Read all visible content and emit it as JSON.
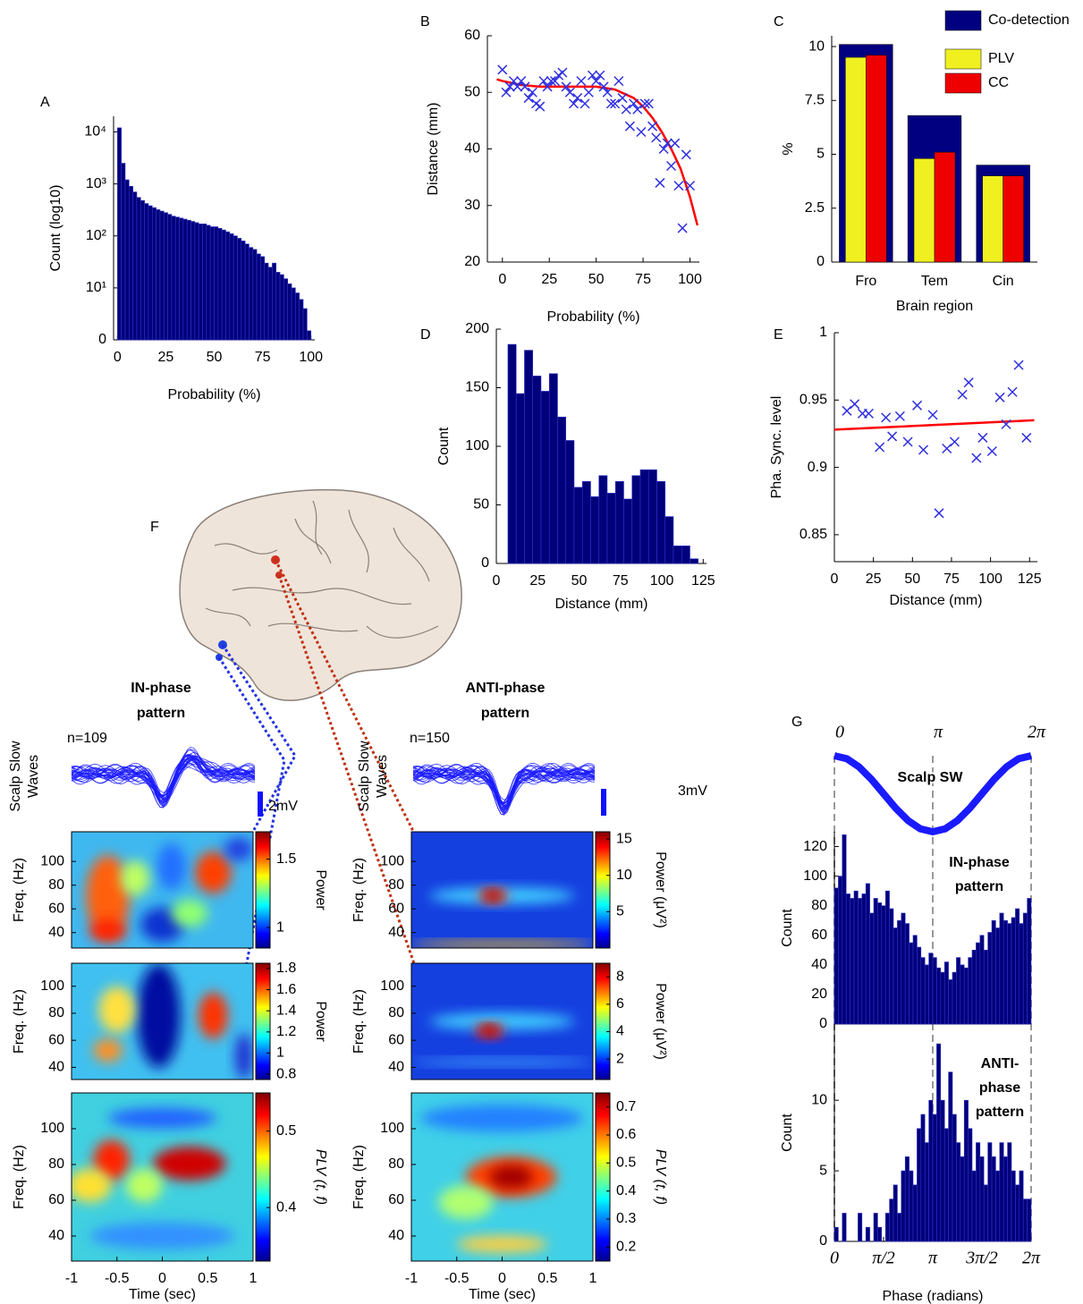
{
  "chart_data": [
    {
      "type": "histogram",
      "panel": "A",
      "log": true,
      "xlabel": "Probability (%)",
      "ylabel": "Count (log10)",
      "color": "#00007a",
      "bins": [
        0,
        2,
        4,
        6,
        8,
        10,
        12,
        14,
        16,
        18,
        20,
        22,
        24,
        26,
        28,
        30,
        32,
        34,
        36,
        38,
        40,
        42,
        44,
        46,
        48,
        50,
        52,
        54,
        56,
        58,
        60,
        62,
        64,
        66,
        68,
        70,
        72,
        74,
        76,
        78,
        80,
        82,
        84,
        86,
        88,
        90,
        92,
        94,
        96,
        98,
        100
      ],
      "counts": [
        12000,
        2500,
        1200,
        900,
        700,
        550,
        480,
        420,
        380,
        350,
        320,
        300,
        280,
        260,
        240,
        230,
        220,
        210,
        200,
        190,
        180,
        170,
        170,
        160,
        150,
        150,
        140,
        130,
        120,
        110,
        100,
        90,
        80,
        70,
        60,
        55,
        45,
        40,
        30,
        25,
        30,
        20,
        18,
        15,
        12,
        10,
        8,
        6,
        4,
        1.5
      ],
      "xlim": [
        -2,
        102
      ],
      "xticks": [
        0,
        25,
        50,
        75,
        100
      ],
      "ylim": [
        1,
        20000
      ],
      "yticks": [
        {
          "value": 1,
          "label": "0"
        },
        {
          "value": 10,
          "label": "10¹"
        },
        {
          "value": 100,
          "label": "10²"
        },
        {
          "value": 1000,
          "label": "10³"
        },
        {
          "value": 10000,
          "label": "10⁴"
        }
      ]
    },
    {
      "type": "scatter",
      "panel": "B",
      "xlabel": "Probability (%)",
      "ylabel": "Distance (mm)",
      "color": "#3030e0",
      "fit_color": "#ff0000",
      "x": [
        0,
        2,
        4,
        6,
        8,
        10,
        12,
        14,
        16,
        18,
        20,
        22,
        24,
        26,
        28,
        30,
        32,
        34,
        36,
        38,
        40,
        42,
        44,
        46,
        48,
        50,
        52,
        54,
        56,
        58,
        60,
        62,
        64,
        66,
        68,
        70,
        72,
        74,
        76,
        78,
        80,
        82,
        84,
        86,
        88,
        90,
        92,
        94,
        96,
        98,
        100
      ],
      "values": [
        54,
        50,
        51,
        52,
        51,
        52,
        51,
        49,
        50,
        48,
        47.5,
        52,
        51,
        52,
        52,
        53,
        53.5,
        51,
        50,
        48,
        49,
        52,
        48,
        50,
        53,
        52,
        53,
        51,
        50,
        48,
        48,
        52,
        49,
        47,
        44,
        48,
        47,
        43,
        48,
        48,
        44,
        42,
        34,
        40,
        41,
        37,
        41,
        33.5,
        26,
        39,
        33.5
      ],
      "fit_x": [
        -3,
        0,
        10,
        20,
        30,
        40,
        50,
        60,
        70,
        75,
        80,
        85,
        90,
        95,
        100,
        104
      ],
      "fit_values": [
        52.3,
        52,
        51.3,
        51,
        51,
        51,
        51,
        50.5,
        49,
        47.5,
        45.5,
        43,
        40,
        36.5,
        31.5,
        26.5
      ],
      "xlim": [
        -8,
        105
      ],
      "xticks": [
        0,
        25,
        50,
        75,
        100
      ],
      "ylim": [
        20,
        60
      ],
      "yticks": [
        20,
        30,
        40,
        50,
        60
      ]
    },
    {
      "type": "bar",
      "panel": "C",
      "xlabel": "Brain region",
      "ylabel": "%",
      "categories": [
        "Fro",
        "Tem",
        "Cin"
      ],
      "series": [
        {
          "name": "Co-detection",
          "color": "#000080",
          "values": [
            10.1,
            6.8,
            4.5
          ]
        },
        {
          "name": "PLV",
          "color": "#f0f020",
          "values": [
            9.5,
            4.8,
            4.0
          ]
        },
        {
          "name": "CC",
          "color": "#ee0000",
          "values": [
            9.6,
            5.1,
            4.0
          ]
        }
      ],
      "ylim": [
        0,
        10.5
      ],
      "yticks": [
        0,
        2.5,
        5,
        7.5,
        10
      ]
    },
    {
      "type": "histogram",
      "panel": "D",
      "xlabel": "Distance (mm)",
      "ylabel": "Count",
      "color": "#00007a",
      "bins": [
        7,
        12,
        17,
        22,
        27,
        32,
        37,
        42,
        47,
        52,
        57,
        62,
        67,
        72,
        77,
        82,
        87,
        92,
        97,
        102,
        107,
        112,
        117,
        122
      ],
      "counts": [
        187,
        145,
        182,
        160,
        147,
        162,
        125,
        105,
        65,
        70,
        57,
        75,
        60,
        70,
        55,
        75,
        80,
        80,
        70,
        40,
        15,
        15,
        4
      ],
      "xlim": [
        0,
        127
      ],
      "xticks": [
        0,
        25,
        50,
        75,
        100,
        125
      ],
      "ylim": [
        0,
        200
      ],
      "yticks": [
        0,
        50,
        100,
        150,
        200
      ]
    },
    {
      "type": "scatter",
      "panel": "E",
      "xlabel": "Distance (mm)",
      "ylabel": "Pha. Sync. level",
      "color": "#3030e0",
      "fit_color": "#ff0000",
      "x": [
        8,
        13,
        18,
        22,
        29,
        33,
        37,
        42,
        47,
        53,
        57,
        63,
        67,
        72,
        77,
        82,
        86,
        91,
        95,
        101,
        106,
        110,
        114,
        118,
        123
      ],
      "values": [
        0.942,
        0.947,
        0.94,
        0.94,
        0.915,
        0.937,
        0.923,
        0.938,
        0.919,
        0.946,
        0.913,
        0.939,
        0.866,
        0.914,
        0.919,
        0.954,
        0.963,
        0.907,
        0.922,
        0.912,
        0.952,
        0.932,
        0.956,
        0.976,
        0.922
      ],
      "fit_x": [
        0,
        128
      ],
      "fit_values": [
        0.928,
        0.935
      ],
      "xlim": [
        0,
        130
      ],
      "xticks": [
        0,
        25,
        50,
        75,
        100,
        125
      ],
      "ylim": [
        0.83,
        1
      ],
      "yticks": [
        0.85,
        0.9,
        0.95,
        1
      ]
    },
    {
      "type": "heatmap",
      "ylabel": "Freq. (Hz)",
      "xlim": [
        -1,
        1
      ],
      "ylim": [
        27,
        125
      ],
      "yticks": [
        40,
        60,
        80,
        100
      ],
      "colorbar": {
        "label": "Power",
        "lim": [
          0.85,
          1.7
        ],
        "ticks": [
          1,
          1.5
        ]
      }
    },
    {
      "type": "heatmap",
      "ylabel": "Freq. (Hz)",
      "xlim": [
        -1,
        1
      ],
      "ylim": [
        31,
        117
      ],
      "yticks": [
        40,
        60,
        80,
        100
      ],
      "colorbar": {
        "label": "Power",
        "lim": [
          0.75,
          1.85
        ],
        "ticks": [
          0.8,
          1,
          1.2,
          1.4,
          1.6,
          1.8
        ]
      }
    },
    {
      "type": "heatmap",
      "ylabel": "Freq. (Hz)",
      "xlabel": "Time (sec)",
      "xlim": [
        -1,
        1
      ],
      "xticks": [
        -1,
        -0.5,
        0,
        0.5,
        1
      ],
      "ylim": [
        26,
        120
      ],
      "yticks": [
        40,
        60,
        80,
        100
      ],
      "colorbar": {
        "label": "PLV (t, f)",
        "lim": [
          0.33,
          0.55
        ],
        "ticks": [
          0.4,
          0.5
        ]
      }
    },
    {
      "type": "heatmap",
      "ylabel": "Freq. (Hz)",
      "xlim": [
        -1,
        1
      ],
      "ylim": [
        27,
        125
      ],
      "yticks": [
        40,
        60,
        80,
        100
      ],
      "colorbar": {
        "label": "Power (μV²)",
        "lim": [
          0,
          16
        ],
        "ticks": [
          5,
          10,
          15
        ]
      }
    },
    {
      "type": "heatmap",
      "ylabel": "Freq. (Hz)",
      "xlim": [
        -1,
        1
      ],
      "ylim": [
        31,
        117
      ],
      "yticks": [
        40,
        60,
        80,
        100
      ],
      "colorbar": {
        "label": "Power (μV²)",
        "lim": [
          0.5,
          9
        ],
        "ticks": [
          2,
          4,
          6,
          8
        ]
      }
    },
    {
      "type": "heatmap",
      "ylabel": "Freq. (Hz)",
      "xlabel": "Time (sec)",
      "xlim": [
        -1,
        1
      ],
      "xticks": [
        -1,
        -0.5,
        0,
        0.5,
        1
      ],
      "ylim": [
        26,
        120
      ],
      "yticks": [
        40,
        60,
        80,
        100
      ],
      "colorbar": {
        "label": "PLV (t, f)",
        "lim": [
          0.15,
          0.75
        ],
        "ticks": [
          0.2,
          0.3,
          0.4,
          0.5,
          0.6,
          0.7
        ]
      }
    },
    {
      "type": "line",
      "panel": "G",
      "color": "#1a1aff",
      "grid": true,
      "annotation_lines": [
        "Scalp SW"
      ],
      "x": [
        0,
        0.393,
        0.785,
        1.178,
        1.571,
        1.963,
        2.356,
        2.749,
        3.142,
        3.534,
        3.927,
        4.32,
        4.712,
        5.105,
        5.498,
        5.89,
        6.283
      ],
      "values": [
        1,
        0.924,
        0.707,
        0.383,
        0,
        -0.383,
        -0.707,
        -0.924,
        -1,
        -0.924,
        -0.707,
        -0.383,
        0,
        0.383,
        0.707,
        0.924,
        1
      ],
      "xlim": [
        0,
        6.283
      ],
      "ylim": [
        -1,
        1
      ],
      "xticks": [
        0,
        {
          "value": 3.142,
          "label": "π"
        },
        {
          "value": 6.283,
          "label": "2π"
        }
      ]
    },
    {
      "type": "histogram",
      "ylabel": "Count",
      "color": "#00007a",
      "annotation_lines": [
        "IN-phase",
        "pattern"
      ],
      "bins": [
        0,
        0.126,
        0.251,
        0.377,
        0.503,
        0.628,
        0.754,
        0.88,
        1.005,
        1.131,
        1.257,
        1.382,
        1.508,
        1.634,
        1.759,
        1.885,
        2.011,
        2.136,
        2.262,
        2.388,
        2.513,
        2.639,
        2.765,
        2.89,
        3.016,
        3.142,
        3.267,
        3.393,
        3.519,
        3.644,
        3.77,
        3.896,
        4.021,
        4.147,
        4.273,
        4.398,
        4.524,
        4.65,
        4.775,
        4.901,
        5.027,
        5.152,
        5.278,
        5.404,
        5.529,
        5.655,
        5.781,
        5.906,
        6.032,
        6.158,
        6.283
      ],
      "counts": [
        92,
        100,
        128,
        88,
        85,
        90,
        85,
        88,
        95,
        75,
        85,
        82,
        80,
        90,
        78,
        65,
        70,
        75,
        68,
        55,
        60,
        52,
        45,
        40,
        48,
        45,
        38,
        35,
        42,
        30,
        35,
        45,
        40,
        38,
        45,
        50,
        55,
        60,
        50,
        62,
        70,
        65,
        75,
        70,
        68,
        72,
        78,
        68,
        75,
        85
      ],
      "xlim": [
        0,
        6.283
      ],
      "ylim": [
        0,
        130
      ],
      "yticks": [
        0,
        20,
        40,
        60,
        80,
        100,
        120
      ]
    },
    {
      "type": "histogram",
      "ylabel": "Count",
      "xlabel": "Phase (radians)",
      "color": "#00007a",
      "annotation_lines": [
        "ANTI-",
        "phase",
        "pattern"
      ],
      "bins": [
        0,
        0.126,
        0.251,
        0.377,
        0.503,
        0.628,
        0.754,
        0.88,
        1.005,
        1.131,
        1.257,
        1.382,
        1.508,
        1.634,
        1.759,
        1.885,
        2.011,
        2.136,
        2.262,
        2.388,
        2.513,
        2.639,
        2.765,
        2.89,
        3.016,
        3.142,
        3.267,
        3.393,
        3.519,
        3.644,
        3.77,
        3.896,
        4.021,
        4.147,
        4.273,
        4.398,
        4.524,
        4.65,
        4.775,
        4.901,
        5.027,
        5.152,
        5.278,
        5.404,
        5.529,
        5.655,
        5.781,
        5.906,
        6.032,
        6.158,
        6.283
      ],
      "counts": [
        1,
        0,
        2,
        0,
        0,
        0,
        2,
        0,
        1,
        0,
        2,
        1,
        0,
        2,
        3,
        4,
        2,
        5,
        6,
        5,
        4,
        8,
        9,
        7,
        10,
        9,
        14,
        10,
        8,
        12,
        9,
        7,
        6,
        10,
        8,
        5,
        7,
        6,
        4,
        7,
        6,
        5,
        7,
        6,
        7,
        5,
        4,
        5,
        3,
        3
      ],
      "xlim": [
        0,
        6.283
      ],
      "ylim": [
        0,
        15.4
      ],
      "yticks": [
        0,
        5,
        10
      ],
      "xticks": [
        0,
        {
          "value": 1.571,
          "label": "π/2"
        },
        {
          "value": 3.142,
          "label": "π"
        },
        {
          "value": 4.712,
          "label": "3π/2"
        },
        {
          "value": 6.283,
          "label": "2π"
        }
      ]
    }
  ],
  "figure_f": {
    "panel": "F",
    "columns": [
      {
        "title_lines": [
          "IN-phase",
          "pattern"
        ],
        "n": "n=109",
        "trace_label_lines": [
          "Scalp Slow",
          "Waves"
        ],
        "scale": "2mV"
      },
      {
        "title_lines": [
          "ANTI-phase",
          "pattern"
        ],
        "n": "n=150",
        "trace_label_lines": [
          "Scalp Slow",
          "Waves"
        ],
        "scale": "3mV"
      }
    ]
  }
}
